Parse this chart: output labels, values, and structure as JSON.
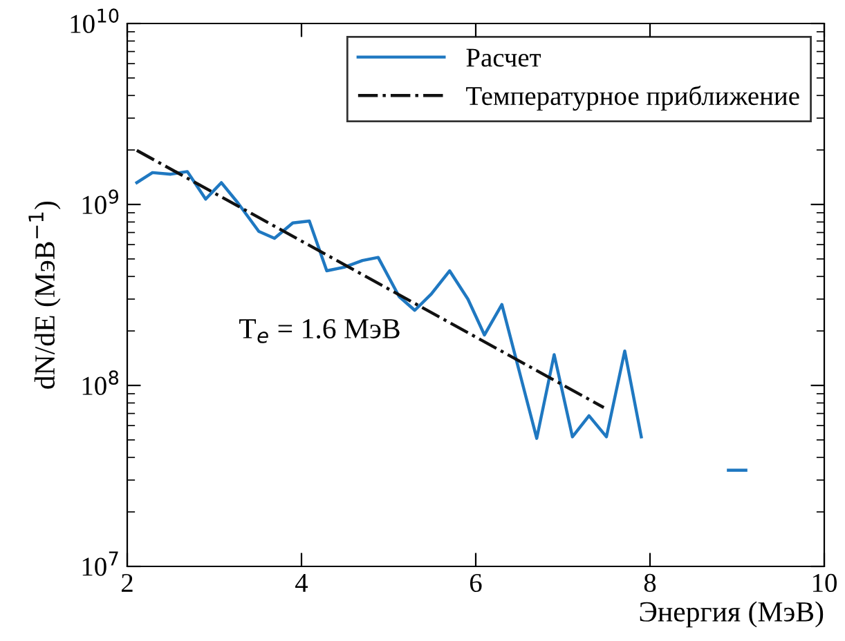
{
  "chart_data": {
    "type": "line",
    "xlabel": "Энергия (МэВ)",
    "ylabel": "dN/dE (МэВ$^{−1}$)",
    "log": "y",
    "xlim": [
      2,
      10
    ],
    "ylim": [
      10000000.0,
      10000000000.0
    ],
    "xticks": [
      2,
      4,
      6,
      8,
      10
    ],
    "yticks": [
      {
        "value": 10000000.0,
        "label": "10$^{7}$"
      },
      {
        "value": 100000000.0,
        "label": "10$^{8}$"
      },
      {
        "value": 1000000000.0,
        "label": "10$^{9}$"
      },
      {
        "value": 10000000000.0,
        "label": "10$^{10}$"
      }
    ],
    "legend": "top right",
    "grid": false,
    "series": [
      {
        "name": "Расчет",
        "color": "#1f78c1",
        "line_style": "solid",
        "x": [
          2.11,
          2.29,
          2.5,
          2.69,
          2.9,
          3.08,
          3.27,
          3.51,
          3.69,
          3.9,
          4.09,
          4.29,
          4.49,
          4.7,
          4.88,
          5.12,
          5.3,
          5.49,
          5.7,
          5.91,
          6.1,
          6.3,
          6.7,
          6.9,
          7.11,
          7.3,
          7.5,
          7.71,
          7.9,
          8.5,
          8.9,
          9.1
        ],
        "values": [
          1320000000.0,
          1500000000.0,
          1470000000.0,
          1520000000.0,
          1070000000.0,
          1320000000.0,
          1020000000.0,
          710000000.0,
          650000000.0,
          790000000.0,
          810000000.0,
          430000000.0,
          450000000.0,
          490000000.0,
          510000000.0,
          310000000.0,
          260000000.0,
          320000000.0,
          430000000.0,
          300000000.0,
          190000000.0,
          280000000.0,
          51000000.0,
          148000000.0,
          52000000.0,
          68000000.0,
          52000000.0,
          155000000.0,
          52000000.0,
          null,
          34000000.0,
          34000000.0
        ]
      },
      {
        "name": "Температурное приближение",
        "color": "#111111",
        "line_style": "dashdot",
        "x": [
          2.11,
          7.47
        ],
        "values": [
          1990000000.0,
          75500000.0
        ]
      }
    ],
    "annotations": [
      "T$_{e}$ = 1.6 МэВ"
    ]
  }
}
